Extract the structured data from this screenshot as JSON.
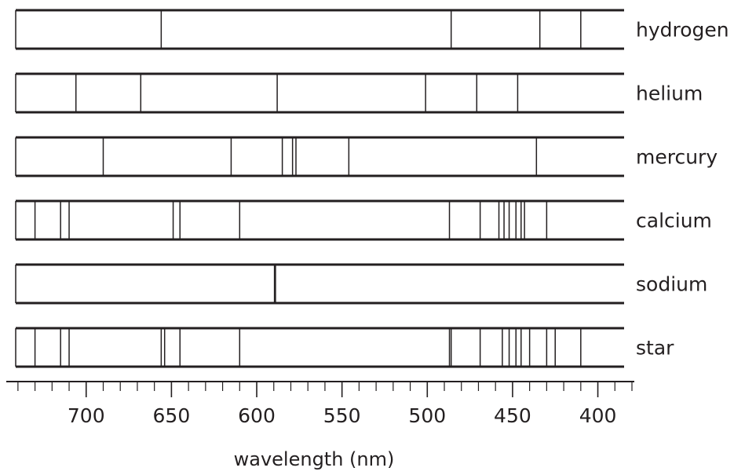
{
  "chart_data": {
    "type": "spectral-lines",
    "xlabel": "wavelength (nm)",
    "xlim": [
      745,
      380
    ],
    "x_ticks": [
      700,
      650,
      600,
      550,
      500,
      450,
      400
    ],
    "minor_tick_step": 10,
    "colors": {
      "ink": "#231f20",
      "background": "#ffffff"
    },
    "series": [
      {
        "name": "hydrogen",
        "lines": [
          656,
          486,
          434,
          410
        ]
      },
      {
        "name": "helium",
        "lines": [
          706,
          668,
          588,
          501,
          471,
          447
        ]
      },
      {
        "name": "mercury",
        "lines": [
          690,
          615,
          585,
          579,
          577,
          546,
          436
        ]
      },
      {
        "name": "calcium",
        "lines": [
          730,
          715,
          710,
          649,
          645,
          610,
          487,
          469,
          458,
          455,
          452,
          448,
          445,
          443,
          430
        ]
      },
      {
        "name": "sodium",
        "lines": [
          589.6,
          589.0
        ]
      },
      {
        "name": "star",
        "lines": [
          730,
          715,
          710,
          656,
          654,
          645,
          610,
          487,
          486,
          469,
          456,
          452,
          448,
          445,
          440,
          430,
          425,
          410
        ]
      }
    ]
  }
}
